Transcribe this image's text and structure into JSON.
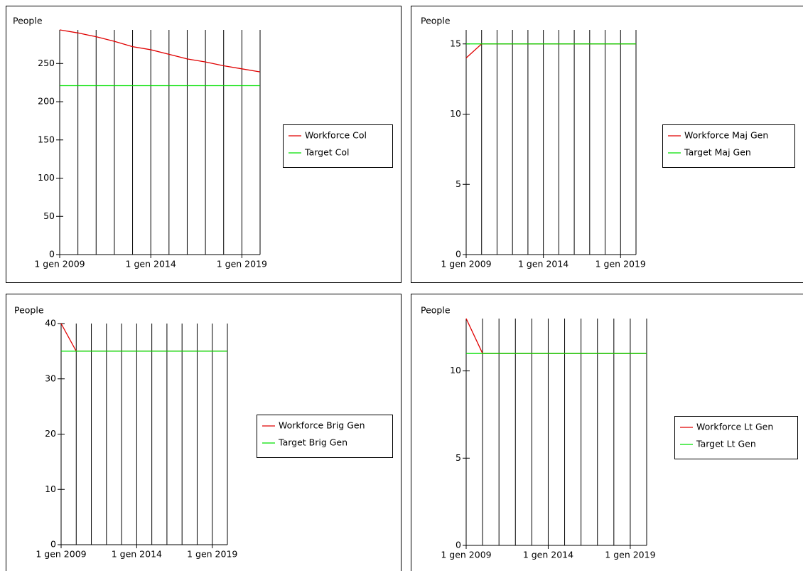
{
  "chart_data": [
    {
      "type": "line",
      "ylabel": "People",
      "categories": [
        "1 gen 2009",
        null,
        null,
        null,
        null,
        "1 gen 2014",
        null,
        null,
        null,
        null,
        "1 gen 2019",
        null
      ],
      "series": [
        {
          "name": "Workforce Col",
          "color": "#e00000",
          "values": [
            294,
            290,
            285,
            279,
            272,
            268,
            262,
            256,
            252,
            247,
            243,
            239
          ]
        },
        {
          "name": "Target Col",
          "color": "#00e000",
          "values": [
            221,
            221,
            221,
            221,
            221,
            221,
            221,
            221,
            221,
            221,
            221,
            221
          ]
        }
      ],
      "ylim": [
        0,
        294
      ],
      "yticks": [
        0,
        50,
        100,
        150,
        200,
        250
      ],
      "vertical_grid": true
    },
    {
      "type": "line",
      "ylabel": "People",
      "categories": [
        "1 gen 2009",
        null,
        null,
        null,
        null,
        "1 gen 2014",
        null,
        null,
        null,
        null,
        "1 gen 2019",
        null
      ],
      "series": [
        {
          "name": "Workforce Maj Gen",
          "color": "#e00000",
          "values": [
            14,
            15,
            15,
            15,
            15,
            15,
            15,
            15,
            15,
            15,
            15,
            15
          ]
        },
        {
          "name": "Target Maj Gen",
          "color": "#00e000",
          "values": [
            15,
            15,
            15,
            15,
            15,
            15,
            15,
            15,
            15,
            15,
            15,
            15
          ]
        }
      ],
      "ylim": [
        0,
        16
      ],
      "yticks": [
        0,
        5,
        10,
        15
      ],
      "vertical_grid": true
    },
    {
      "type": "line",
      "ylabel": "People",
      "categories": [
        "1 gen 2009",
        null,
        null,
        null,
        null,
        "1 gen 2014",
        null,
        null,
        null,
        null,
        "1 gen 2019",
        null
      ],
      "series": [
        {
          "name": "Workforce Brig Gen",
          "color": "#e00000",
          "values": [
            40,
            35,
            35,
            35,
            35,
            35,
            35,
            35,
            35,
            35,
            35,
            35
          ]
        },
        {
          "name": "Target Brig Gen",
          "color": "#00e000",
          "values": [
            35,
            35,
            35,
            35,
            35,
            35,
            35,
            35,
            35,
            35,
            35,
            35
          ]
        }
      ],
      "ylim": [
        0,
        40
      ],
      "yticks": [
        0,
        10,
        20,
        30,
        40
      ],
      "vertical_grid": true
    },
    {
      "type": "line",
      "ylabel": "People",
      "categories": [
        "1 gen 2009",
        null,
        null,
        null,
        null,
        "1 gen 2014",
        null,
        null,
        null,
        null,
        "1 gen 2019",
        null
      ],
      "series": [
        {
          "name": "Workforce Lt Gen",
          "color": "#e00000",
          "values": [
            13,
            11,
            11,
            11,
            11,
            11,
            11,
            11,
            11,
            11,
            11,
            11
          ]
        },
        {
          "name": "Target Lt Gen",
          "color": "#00e000",
          "values": [
            11,
            11,
            11,
            11,
            11,
            11,
            11,
            11,
            11,
            11,
            11,
            11
          ]
        }
      ],
      "ylim": [
        0,
        13
      ],
      "yticks": [
        0,
        5,
        10
      ],
      "vertical_grid": true
    }
  ]
}
